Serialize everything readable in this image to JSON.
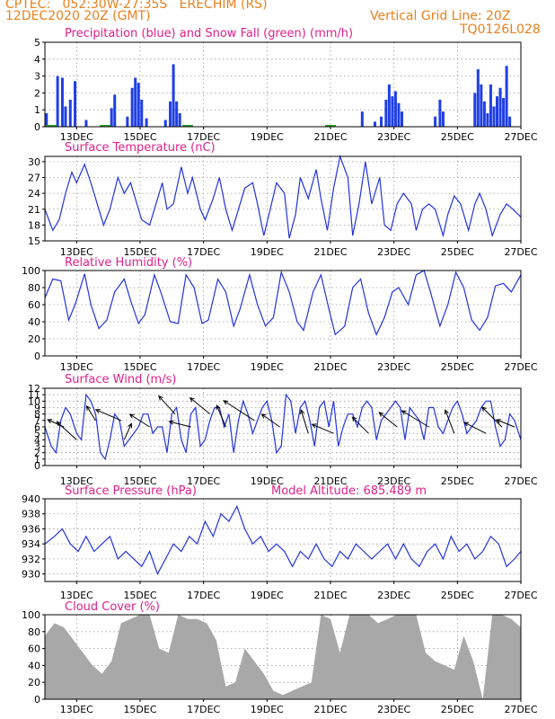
{
  "header": {
    "line1": "CPTEC:   052:30W-27:35S   ERECHIM (RS)",
    "line2": "12DEC2020 20Z (GMT)",
    "grid_note": "Vertical Grid Line: 20Z",
    "code": "TQ0126L028"
  },
  "colors": {
    "accent": "#e8801e",
    "title": "#e0208a",
    "line": "#2233dd",
    "bar": "#1f3fe6",
    "snow": "#2aa02a",
    "cloud": "#a8a8a8",
    "grid": "#9a9a9a"
  },
  "x_labels": [
    "13DEC",
    "15DEC",
    "17DEC",
    "19DEC",
    "21DEC",
    "23DEC",
    "25DEC",
    "27DEC"
  ],
  "chart_data": [
    {
      "type": "bar",
      "title": "Precipitation (blue) and Snow Fall (green) (mm/h)",
      "ylim": [
        0,
        5
      ],
      "yticks": [
        0,
        1,
        2,
        3,
        4,
        5
      ],
      "x_unit": "days from 12DEC2020 20Z",
      "precip": [
        [
          0.05,
          0.8
        ],
        [
          0.4,
          3.0
        ],
        [
          0.55,
          2.9
        ],
        [
          0.65,
          1.2
        ],
        [
          0.8,
          1.6
        ],
        [
          0.95,
          2.7
        ],
        [
          1.3,
          0.4
        ],
        [
          2.1,
          1.1
        ],
        [
          2.2,
          1.9
        ],
        [
          2.6,
          0.6
        ],
        [
          2.75,
          2.3
        ],
        [
          2.85,
          2.9
        ],
        [
          2.95,
          2.6
        ],
        [
          3.05,
          1.6
        ],
        [
          3.2,
          0.5
        ],
        [
          3.8,
          0.4
        ],
        [
          3.95,
          1.5
        ],
        [
          4.05,
          3.7
        ],
        [
          4.15,
          1.5
        ],
        [
          4.25,
          0.8
        ],
        [
          10.0,
          0.9
        ],
        [
          10.4,
          0.3
        ],
        [
          10.6,
          0.6
        ],
        [
          10.75,
          1.6
        ],
        [
          10.85,
          2.5
        ],
        [
          10.95,
          1.8
        ],
        [
          11.05,
          2.1
        ],
        [
          11.15,
          1.4
        ],
        [
          11.25,
          0.9
        ],
        [
          12.3,
          0.6
        ],
        [
          12.45,
          1.6
        ],
        [
          12.55,
          0.9
        ],
        [
          13.55,
          2.0
        ],
        [
          13.65,
          3.4
        ],
        [
          13.75,
          2.5
        ],
        [
          13.85,
          1.5
        ],
        [
          13.95,
          0.8
        ],
        [
          14.05,
          2.5
        ],
        [
          14.15,
          1.2
        ],
        [
          14.25,
          1.8
        ],
        [
          14.35,
          2.3
        ],
        [
          14.45,
          1.7
        ],
        [
          14.55,
          3.6
        ],
        [
          14.65,
          0.6
        ]
      ],
      "snow": [
        [
          0.2,
          0.05
        ],
        [
          1.9,
          0.05
        ],
        [
          4.5,
          0.05
        ],
        [
          9.0,
          0.05
        ]
      ]
    },
    {
      "type": "line",
      "title": "Surface Temperature (nC)",
      "ylim": [
        15,
        31
      ],
      "yticks": [
        15,
        18,
        21,
        24,
        27,
        30
      ],
      "x": [
        0,
        0.25,
        0.45,
        0.65,
        0.85,
        1.0,
        1.25,
        1.45,
        1.65,
        1.85,
        2.05,
        2.3,
        2.5,
        2.7,
        2.85,
        3.05,
        3.3,
        3.5,
        3.7,
        3.85,
        4.05,
        4.3,
        4.5,
        4.65,
        4.9,
        5.05,
        5.3,
        5.5,
        5.7,
        5.9,
        6.05,
        6.3,
        6.55,
        6.7,
        6.9,
        7.1,
        7.3,
        7.55,
        7.7,
        7.9,
        8.05,
        8.3,
        8.55,
        8.7,
        8.9,
        9.1,
        9.3,
        9.55,
        9.7,
        9.9,
        10.1,
        10.3,
        10.55,
        10.7,
        10.9,
        11.1,
        11.3,
        11.55,
        11.7,
        11.9,
        12.1,
        12.3,
        12.55,
        12.7,
        12.9,
        13.1,
        13.35,
        13.55,
        13.7,
        13.9,
        14.1,
        14.35,
        14.55,
        14.75,
        15.0
      ],
      "y": [
        21,
        17,
        19,
        24,
        28,
        26,
        29.5,
        26,
        22,
        18,
        21,
        27,
        24,
        26,
        23,
        19,
        18,
        22,
        26,
        21,
        22,
        29,
        24,
        27,
        21,
        19,
        23,
        27,
        21,
        17,
        20,
        25,
        26,
        22,
        16,
        21,
        26,
        24,
        15.5,
        20,
        27,
        23,
        28.5,
        23,
        17,
        25,
        31,
        27,
        16,
        22,
        30,
        22,
        27,
        18,
        17,
        22,
        24,
        22,
        17,
        21,
        22,
        21,
        16,
        20,
        23.5,
        22,
        17,
        22,
        24,
        21,
        16,
        20,
        22,
        21,
        19.5
      ]
    },
    {
      "type": "line",
      "title": "Relative Humidity (%)",
      "ylim": [
        0,
        100
      ],
      "yticks": [
        0,
        20,
        40,
        60,
        80,
        100
      ],
      "x": [
        0,
        0.25,
        0.5,
        0.75,
        0.95,
        1.25,
        1.45,
        1.7,
        1.95,
        2.2,
        2.5,
        2.7,
        2.95,
        3.15,
        3.45,
        3.65,
        3.95,
        4.2,
        4.45,
        4.7,
        4.95,
        5.15,
        5.45,
        5.7,
        5.95,
        6.15,
        6.45,
        6.7,
        6.95,
        7.2,
        7.45,
        7.7,
        7.95,
        8.15,
        8.45,
        8.7,
        8.95,
        9.15,
        9.45,
        9.7,
        9.95,
        10.2,
        10.45,
        10.7,
        10.95,
        11.15,
        11.45,
        11.7,
        11.95,
        12.15,
        12.45,
        12.7,
        12.95,
        13.2,
        13.45,
        13.7,
        13.95,
        14.2,
        14.45,
        14.7,
        15.0
      ],
      "y": [
        68,
        90,
        88,
        42,
        60,
        96,
        60,
        32,
        42,
        75,
        90,
        65,
        38,
        48,
        95,
        75,
        40,
        38,
        95,
        80,
        38,
        42,
        90,
        75,
        35,
        55,
        95,
        60,
        35,
        45,
        98,
        75,
        40,
        30,
        75,
        95,
        55,
        25,
        35,
        80,
        90,
        50,
        25,
        45,
        75,
        80,
        60,
        95,
        100,
        75,
        35,
        60,
        98,
        80,
        42,
        30,
        45,
        82,
        85,
        75,
        95
      ]
    },
    {
      "type": "line",
      "title": "Surface Wind (m/s)",
      "ylim": [
        0,
        12
      ],
      "yticks": [
        0,
        1,
        2,
        3,
        4,
        5,
        6,
        7,
        8,
        9,
        10,
        11,
        12
      ],
      "x": [
        0,
        0.2,
        0.35,
        0.5,
        0.65,
        0.8,
        1.0,
        1.15,
        1.3,
        1.45,
        1.6,
        1.75,
        1.9,
        2.05,
        2.2,
        2.35,
        2.5,
        2.65,
        2.8,
        2.95,
        3.1,
        3.25,
        3.4,
        3.55,
        3.7,
        3.85,
        4.0,
        4.15,
        4.3,
        4.45,
        4.6,
        4.75,
        4.9,
        5.05,
        5.2,
        5.35,
        5.5,
        5.65,
        5.8,
        5.95,
        6.1,
        6.25,
        6.4,
        6.55,
        6.7,
        6.85,
        7.0,
        7.15,
        7.3,
        7.45,
        7.6,
        7.75,
        7.9,
        8.05,
        8.2,
        8.35,
        8.5,
        8.65,
        8.8,
        8.95,
        9.1,
        9.25,
        9.4,
        9.55,
        9.7,
        9.85,
        10.0,
        10.15,
        10.3,
        10.45,
        10.6,
        10.75,
        10.9,
        11.05,
        11.2,
        11.35,
        11.5,
        11.65,
        11.8,
        11.95,
        12.1,
        12.25,
        12.4,
        12.55,
        12.7,
        12.85,
        13.0,
        13.15,
        13.3,
        13.45,
        13.6,
        13.75,
        13.9,
        14.05,
        14.2,
        14.35,
        14.5,
        14.65,
        14.8,
        15.0
      ],
      "y": [
        6,
        3,
        2,
        7,
        9,
        8,
        5,
        4,
        11,
        10,
        8,
        2,
        1,
        4,
        8,
        7,
        3,
        4,
        5,
        6,
        8,
        8,
        5,
        6,
        6,
        2,
        8,
        9,
        4,
        2,
        8,
        9,
        3,
        4,
        7,
        9,
        9,
        6,
        8,
        2,
        7,
        10,
        8,
        5,
        7,
        9,
        10,
        7,
        2,
        3,
        11,
        10,
        5,
        9,
        10,
        7,
        3,
        9,
        10,
        6,
        10,
        3,
        6,
        8,
        8,
        6,
        9,
        10,
        9,
        4,
        7,
        8,
        9,
        10,
        9,
        4,
        9,
        8,
        7,
        4,
        9,
        9,
        6,
        5,
        7,
        9,
        10,
        8,
        5,
        6,
        7,
        9,
        10,
        10,
        6,
        3,
        4,
        8,
        7,
        4
      ]
    },
    {
      "type": "line",
      "title": "Surface Pressure (hPa)",
      "ylim": [
        929,
        940
      ],
      "yticks": [
        930,
        932,
        934,
        936,
        938,
        940
      ],
      "x": [
        0,
        0.3,
        0.55,
        0.8,
        1.05,
        1.3,
        1.55,
        1.8,
        2.05,
        2.3,
        2.55,
        2.8,
        3.05,
        3.3,
        3.55,
        3.8,
        4.05,
        4.3,
        4.55,
        4.8,
        5.05,
        5.3,
        5.55,
        5.8,
        6.05,
        6.3,
        6.55,
        6.8,
        7.05,
        7.3,
        7.55,
        7.8,
        8.05,
        8.3,
        8.55,
        8.8,
        9.05,
        9.3,
        9.55,
        9.8,
        10.05,
        10.3,
        10.55,
        10.8,
        11.05,
        11.3,
        11.55,
        11.8,
        12.05,
        12.3,
        12.55,
        12.8,
        13.05,
        13.3,
        13.55,
        13.8,
        14.05,
        14.3,
        14.55,
        14.8,
        15.0
      ],
      "y": [
        934,
        935,
        936,
        934,
        933,
        935,
        933,
        934,
        935,
        932,
        933,
        932,
        931,
        933,
        930,
        932,
        934,
        933,
        935,
        934,
        937,
        935,
        938,
        937,
        939,
        936,
        934,
        935,
        933,
        934,
        933,
        931,
        933,
        932,
        934,
        932,
        931,
        933,
        932,
        934,
        933,
        932,
        933,
        934,
        932,
        934,
        932,
        931,
        933,
        934,
        932,
        935,
        933,
        934,
        932,
        933,
        935,
        934,
        931,
        932,
        933
      ]
    },
    {
      "type": "area",
      "title": "Cloud Cover (%)",
      "ylim": [
        0,
        100
      ],
      "yticks": [
        0,
        20,
        40,
        60,
        80,
        100
      ],
      "x": [
        0,
        0.3,
        0.6,
        0.9,
        1.2,
        1.5,
        1.8,
        2.1,
        2.4,
        2.7,
        3.0,
        3.3,
        3.6,
        3.9,
        4.2,
        4.5,
        4.8,
        5.1,
        5.4,
        5.7,
        6.0,
        6.3,
        6.6,
        6.9,
        7.2,
        7.5,
        7.8,
        8.1,
        8.4,
        8.7,
        9.0,
        9.3,
        9.6,
        9.9,
        10.2,
        10.5,
        10.8,
        11.1,
        11.4,
        11.7,
        12.0,
        12.3,
        12.6,
        12.9,
        13.2,
        13.5,
        13.8,
        14.1,
        14.4,
        14.7,
        15.0
      ],
      "y": [
        75,
        90,
        85,
        70,
        55,
        40,
        30,
        45,
        90,
        95,
        100,
        100,
        60,
        55,
        100,
        95,
        95,
        90,
        70,
        15,
        20,
        60,
        45,
        30,
        10,
        5,
        10,
        15,
        20,
        100,
        95,
        55,
        100,
        100,
        100,
        90,
        95,
        100,
        100,
        100,
        55,
        45,
        40,
        35,
        75,
        45,
        0,
        100,
        100,
        95,
        85
      ]
    }
  ],
  "panel_extra": {
    "altitude": "Model Altitude: 685.489  m"
  },
  "wind_arrows": [
    {
      "t": 0.6,
      "v": 6,
      "dx": -18,
      "dy": -8
    },
    {
      "t": 1.0,
      "v": 4,
      "dx": -22,
      "dy": -20
    },
    {
      "t": 1.6,
      "v": 7,
      "dx": -10,
      "dy": -16
    },
    {
      "t": 2.4,
      "v": 7,
      "dx": -28,
      "dy": -12
    },
    {
      "t": 2.5,
      "v": 4,
      "dx": 8,
      "dy": -18
    },
    {
      "t": 3.3,
      "v": 6,
      "dx": -22,
      "dy": -14
    },
    {
      "t": 4.1,
      "v": 8,
      "dx": -18,
      "dy": -20
    },
    {
      "t": 4.6,
      "v": 6,
      "dx": -24,
      "dy": -6
    },
    {
      "t": 5.2,
      "v": 8,
      "dx": -22,
      "dy": -18
    },
    {
      "t": 5.7,
      "v": 6,
      "dx": -10,
      "dy": -24
    },
    {
      "t": 6.6,
      "v": 7,
      "dx": -34,
      "dy": -22
    },
    {
      "t": 7.4,
      "v": 6,
      "dx": -20,
      "dy": -14
    },
    {
      "t": 8.3,
      "v": 5,
      "dx": -8,
      "dy": -26
    },
    {
      "t": 9.1,
      "v": 5,
      "dx": -24,
      "dy": -10
    },
    {
      "t": 10.2,
      "v": 5,
      "dx": -18,
      "dy": -18
    },
    {
      "t": 11.1,
      "v": 6,
      "dx": -20,
      "dy": -16
    },
    {
      "t": 12.1,
      "v": 6,
      "dx": -30,
      "dy": -18
    },
    {
      "t": 12.9,
      "v": 5,
      "dx": -10,
      "dy": -26
    },
    {
      "t": 13.9,
      "v": 5,
      "dx": -24,
      "dy": -12
    },
    {
      "t": 14.4,
      "v": 6,
      "dx": -22,
      "dy": -22
    },
    {
      "t": 14.8,
      "v": 6,
      "dx": -20,
      "dy": -8
    }
  ]
}
